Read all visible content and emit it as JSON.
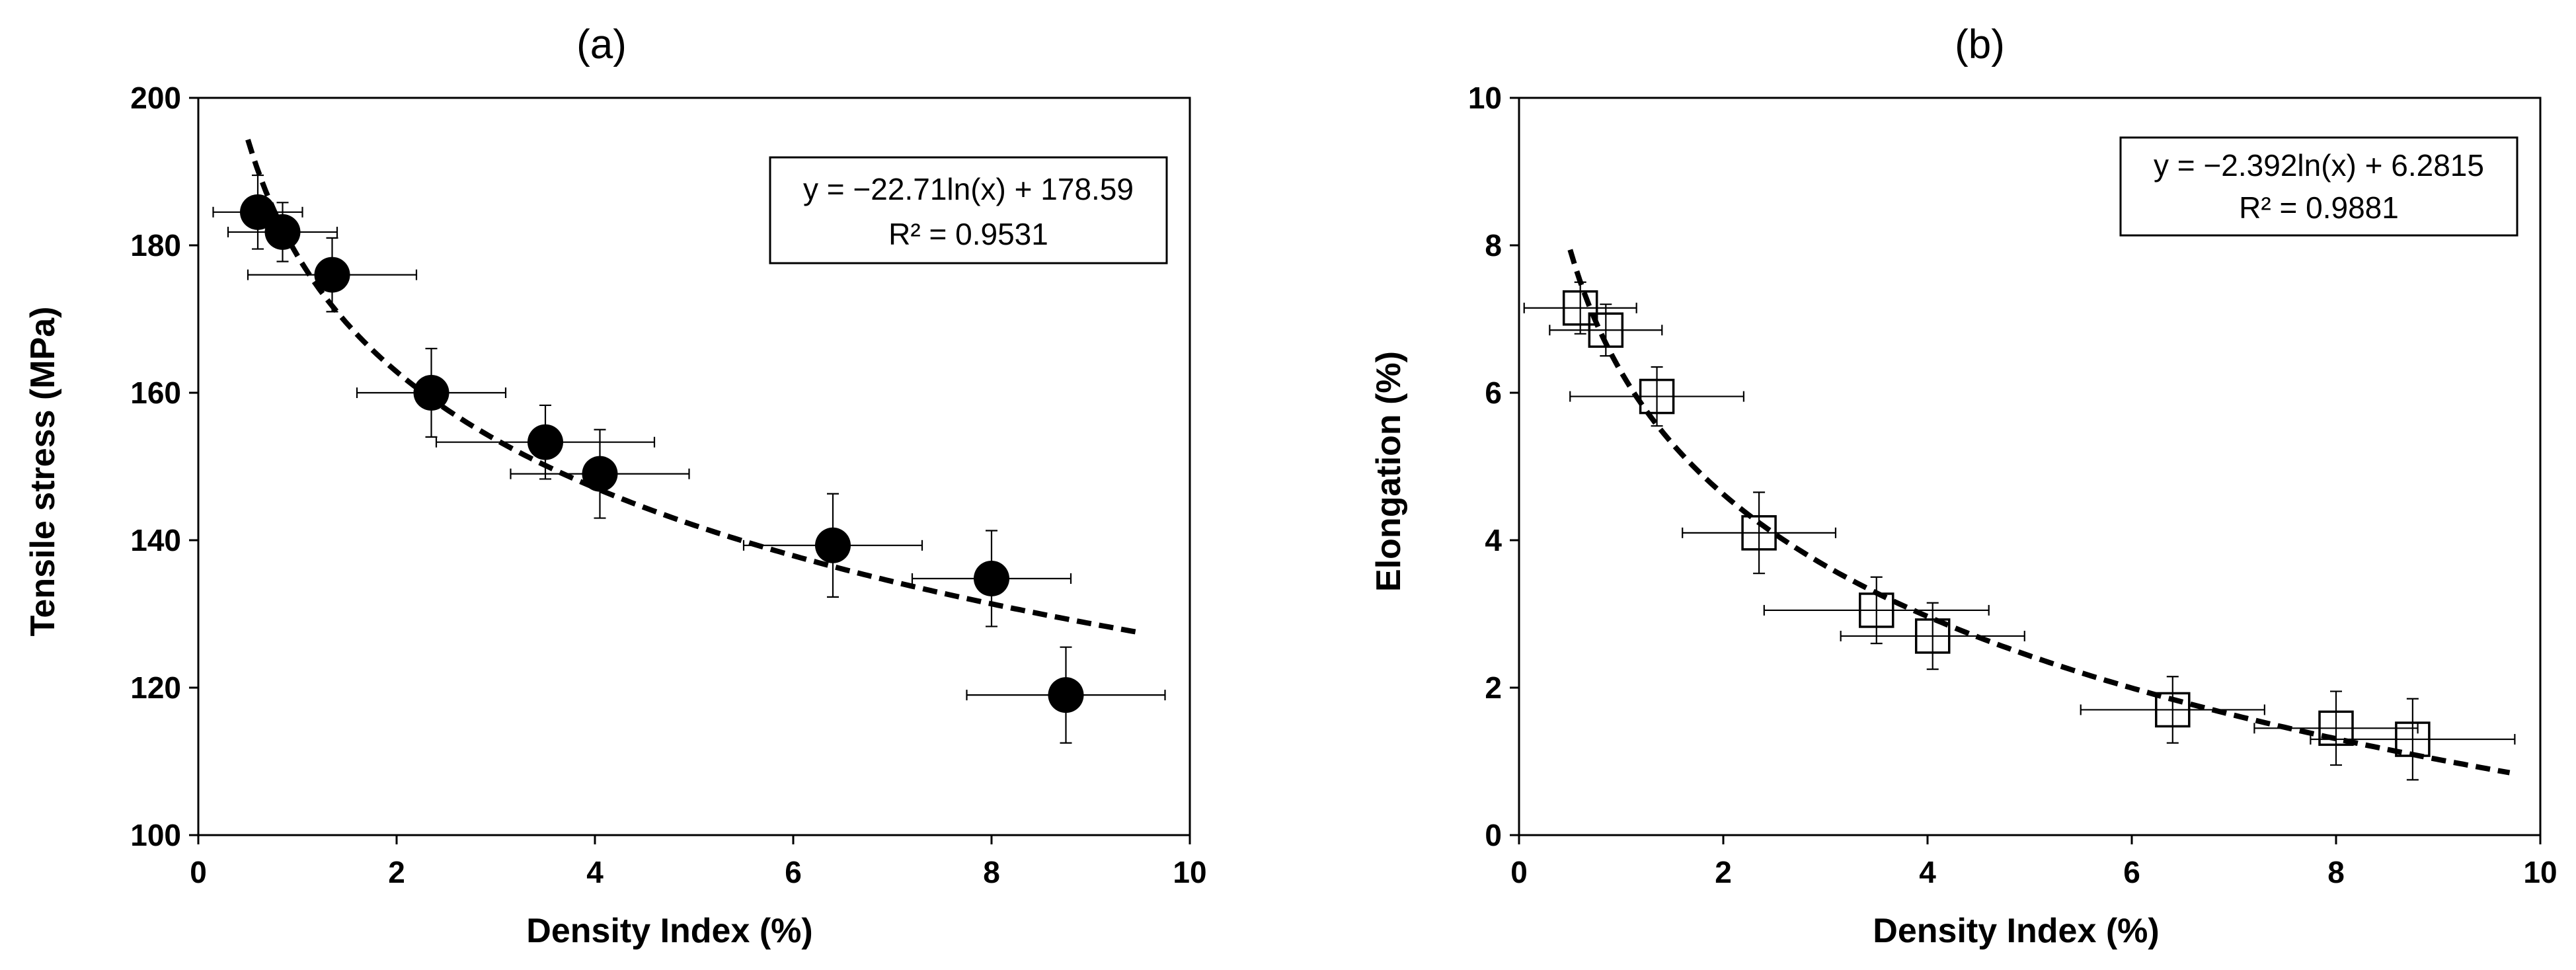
{
  "chart_data": [
    {
      "type": "scatter",
      "title": "(a)",
      "xlabel": "Density Index (%)",
      "ylabel": "Tensile stress (MPa)",
      "xlim": [
        0,
        10
      ],
      "ylim": [
        100,
        200
      ],
      "xticks": [
        0,
        2,
        4,
        6,
        8,
        10
      ],
      "yticks": [
        100,
        120,
        140,
        160,
        180,
        200
      ],
      "marker": "filled-circle",
      "points": [
        {
          "x": 0.6,
          "y": 184.5,
          "xerr": 0.45,
          "yerr": 5
        },
        {
          "x": 0.85,
          "y": 181.8,
          "xerr": 0.55,
          "yerr": 4
        },
        {
          "x": 1.35,
          "y": 176,
          "xerr": 0.85,
          "yerr": 5
        },
        {
          "x": 2.35,
          "y": 160,
          "xerr": 0.75,
          "yerr": 6
        },
        {
          "x": 3.5,
          "y": 153.3,
          "xerr": 1.1,
          "yerr": 5
        },
        {
          "x": 4.05,
          "y": 149,
          "xerr": 0.9,
          "yerr": 6
        },
        {
          "x": 6.4,
          "y": 139.3,
          "xerr": 0.9,
          "yerr": 7
        },
        {
          "x": 8.0,
          "y": 134.8,
          "xerr": 0.8,
          "yerr": 6.5
        },
        {
          "x": 8.75,
          "y": 119,
          "xerr": 1.0,
          "yerr": 6.5
        }
      ],
      "trendline": {
        "a": -22.71,
        "b": 178.59,
        "xmin": 0.5,
        "xmax": 9.5
      },
      "equation_line1": "y = −22.71ln(x) + 178.59",
      "equation_line2": "R² = 0.9531"
    },
    {
      "type": "scatter",
      "title": "(b)",
      "xlabel": "Density Index (%)",
      "ylabel": "Elongation (%)",
      "xlim": [
        0,
        10
      ],
      "ylim": [
        0,
        10
      ],
      "xticks": [
        0,
        2,
        4,
        6,
        8,
        10
      ],
      "yticks": [
        0,
        2,
        4,
        6,
        8,
        10
      ],
      "marker": "open-square",
      "points": [
        {
          "x": 0.6,
          "y": 7.15,
          "xerr": 0.55,
          "yerr": 0.35
        },
        {
          "x": 0.85,
          "y": 6.85,
          "xerr": 0.55,
          "yerr": 0.35
        },
        {
          "x": 1.35,
          "y": 5.95,
          "xerr": 0.85,
          "yerr": 0.4
        },
        {
          "x": 2.35,
          "y": 4.1,
          "xerr": 0.75,
          "yerr": 0.55
        },
        {
          "x": 3.5,
          "y": 3.05,
          "xerr": 1.1,
          "yerr": 0.45
        },
        {
          "x": 4.05,
          "y": 2.7,
          "xerr": 0.9,
          "yerr": 0.45
        },
        {
          "x": 6.4,
          "y": 1.7,
          "xerr": 0.9,
          "yerr": 0.45
        },
        {
          "x": 8.0,
          "y": 1.45,
          "xerr": 0.8,
          "yerr": 0.5
        },
        {
          "x": 8.75,
          "y": 1.3,
          "xerr": 1.0,
          "yerr": 0.55
        }
      ],
      "trendline": {
        "a": -2.392,
        "b": 6.2815,
        "xmin": 0.5,
        "xmax": 9.7
      },
      "equation_line1": "y = −2.392ln(x) + 6.2815",
      "equation_line2": "R² = 0.9881"
    }
  ]
}
